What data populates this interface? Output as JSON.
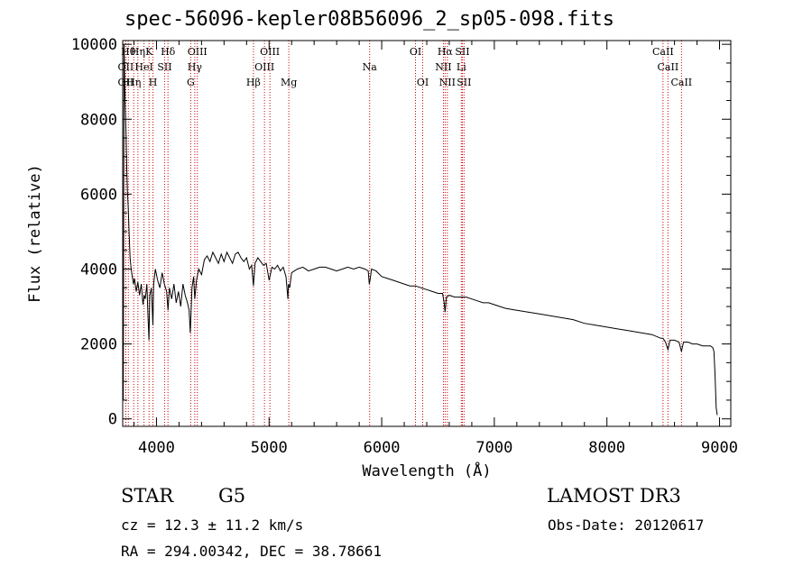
{
  "chart_data": {
    "type": "line",
    "title": "spec-56096-kepler08B56096_2_sp05-098.fits",
    "xlabel": "Wavelength (Å)",
    "ylabel": "Flux (relative)",
    "xlim": [
      3700,
      9100
    ],
    "ylim": [
      -200,
      10100
    ],
    "x_ticks": [
      4000,
      5000,
      6000,
      7000,
      8000,
      9000
    ],
    "y_ticks": [
      0,
      2000,
      4000,
      6000,
      8000,
      10000
    ],
    "x_tick_labels": [
      "4000",
      "5000",
      "6000",
      "7000",
      "8000",
      "9000"
    ],
    "y_tick_labels": [
      "0",
      "2000",
      "4000",
      "6000",
      "8000",
      "10000"
    ],
    "series": [
      {
        "name": "flux",
        "color": "#000000",
        "x": [
          3705,
          3712,
          3718,
          3724,
          3730,
          3736,
          3742,
          3750,
          3758,
          3766,
          3775,
          3785,
          3795,
          3805,
          3820,
          3835,
          3850,
          3865,
          3880,
          3890,
          3900,
          3915,
          3925,
          3933,
          3940,
          3955,
          3968,
          3975,
          3990,
          4010,
          4030,
          4050,
          4070,
          4090,
          4102,
          4115,
          4135,
          4155,
          4175,
          4195,
          4215,
          4235,
          4255,
          4275,
          4290,
          4300,
          4315,
          4330,
          4340,
          4355,
          4375,
          4400,
          4425,
          4450,
          4475,
          4500,
          4525,
          4550,
          4575,
          4600,
          4625,
          4650,
          4675,
          4700,
          4725,
          4750,
          4775,
          4800,
          4825,
          4845,
          4861,
          4875,
          4900,
          4925,
          4950,
          4975,
          5000,
          5025,
          5050,
          5075,
          5100,
          5125,
          5150,
          5167,
          5172,
          5183,
          5200,
          5250,
          5300,
          5350,
          5400,
          5450,
          5500,
          5550,
          5600,
          5650,
          5700,
          5750,
          5800,
          5850,
          5880,
          5890,
          5896,
          5910,
          5950,
          6000,
          6050,
          6100,
          6150,
          6200,
          6250,
          6300,
          6350,
          6400,
          6450,
          6500,
          6540,
          6555,
          6563,
          6575,
          6600,
          6650,
          6700,
          6750,
          6800,
          6850,
          6900,
          6950,
          7000,
          7100,
          7200,
          7300,
          7400,
          7500,
          7600,
          7700,
          7800,
          7900,
          8000,
          8100,
          8200,
          8300,
          8400,
          8480,
          8498,
          8520,
          8542,
          8560,
          8600,
          8640,
          8662,
          8680,
          8720,
          8760,
          8800,
          8850,
          8900,
          8920,
          8940,
          8950,
          8960,
          8970,
          8980
        ],
        "y": [
          500,
          10000,
          9000,
          8200,
          7600,
          6700,
          6100,
          5600,
          4900,
          4300,
          4000,
          3800,
          3600,
          3750,
          3400,
          3650,
          3300,
          3600,
          3050,
          3300,
          3200,
          3600,
          2700,
          2100,
          3300,
          3500,
          2500,
          3600,
          4000,
          3700,
          3500,
          3900,
          3600,
          3400,
          2900,
          3500,
          3200,
          3600,
          3100,
          3400,
          3000,
          3600,
          3300,
          3100,
          2900,
          2300,
          3500,
          3800,
          3200,
          3700,
          4000,
          3850,
          4250,
          4350,
          4200,
          4450,
          4300,
          4150,
          4400,
          4200,
          4450,
          4300,
          4150,
          4400,
          4450,
          4300,
          4200,
          4300,
          4000,
          4100,
          3550,
          4150,
          4300,
          4200,
          4100,
          4150,
          3700,
          4050,
          4000,
          4100,
          3950,
          4050,
          3800,
          3200,
          3600,
          3500,
          3900,
          4000,
          4050,
          3950,
          4000,
          4050,
          4050,
          4000,
          3950,
          4000,
          4050,
          4000,
          4050,
          4000,
          3950,
          3600,
          3700,
          4000,
          3950,
          3800,
          3750,
          3700,
          3650,
          3600,
          3550,
          3550,
          3500,
          3450,
          3400,
          3350,
          3350,
          3100,
          2850,
          3250,
          3300,
          3250,
          3250,
          3250,
          3200,
          3150,
          3100,
          3100,
          3050,
          2950,
          2900,
          2850,
          2800,
          2750,
          2700,
          2650,
          2550,
          2500,
          2450,
          2400,
          2350,
          2300,
          2250,
          2150,
          2150,
          2050,
          1850,
          2100,
          2100,
          2050,
          1800,
          2050,
          2050,
          2000,
          2000,
          1950,
          1950,
          1950,
          1900,
          1800,
          1200,
          300,
          100
        ]
      }
    ],
    "line_markers": [
      {
        "x": 3727,
        "label": "OII",
        "row": 2
      },
      {
        "x": 3727,
        "label": "OII",
        "row": 3
      },
      {
        "x": 3750,
        "label": "Hθ",
        "row": 1
      },
      {
        "x": 3798,
        "label": "Hη",
        "row": 3
      },
      {
        "x": 3835,
        "label": "Hη",
        "row": 1
      },
      {
        "x": 3889,
        "label": "HeI",
        "row": 2
      },
      {
        "x": 3934,
        "label": "K",
        "row": 1
      },
      {
        "x": 3969,
        "label": "H",
        "row": 3
      },
      {
        "x": 4072,
        "label": "SII",
        "row": 2
      },
      {
        "x": 4102,
        "label": "Hδ",
        "row": 1
      },
      {
        "x": 4304,
        "label": "G",
        "row": 3
      },
      {
        "x": 4340,
        "label": "Hγ",
        "row": 2
      },
      {
        "x": 4363,
        "label": "OIII",
        "row": 1
      },
      {
        "x": 4861,
        "label": "Hβ",
        "row": 3
      },
      {
        "x": 4959,
        "label": "OIII",
        "row": 2
      },
      {
        "x": 5007,
        "label": "OIII",
        "row": 1
      },
      {
        "x": 5175,
        "label": "Mg",
        "row": 3
      },
      {
        "x": 5893,
        "label": "Na",
        "row": 2
      },
      {
        "x": 6300,
        "label": "OI",
        "row": 1
      },
      {
        "x": 6364,
        "label": "OI",
        "row": 3
      },
      {
        "x": 6548,
        "label": "NII",
        "row": 2
      },
      {
        "x": 6563,
        "label": "Hα",
        "row": 1
      },
      {
        "x": 6583,
        "label": "NII",
        "row": 3
      },
      {
        "x": 6707,
        "label": "Li",
        "row": 2
      },
      {
        "x": 6716,
        "label": "SII",
        "row": 1
      },
      {
        "x": 6731,
        "label": "SII",
        "row": 3
      },
      {
        "x": 8498,
        "label": "CaII",
        "row": 1
      },
      {
        "x": 8542,
        "label": "CaII",
        "row": 2
      },
      {
        "x": 8662,
        "label": "CaII",
        "row": 3
      }
    ],
    "line_marker_color": "#cc0000",
    "grid": false,
    "legend": "none"
  },
  "info": {
    "object_class": "STAR",
    "subclass": "G5",
    "survey": "LAMOST DR3",
    "redshift": "cz = 12.3 ± 11.2 km/s",
    "obs_date": "Obs-Date: 20120617",
    "coords": "RA = 294.00342, DEC =  38.78661"
  }
}
